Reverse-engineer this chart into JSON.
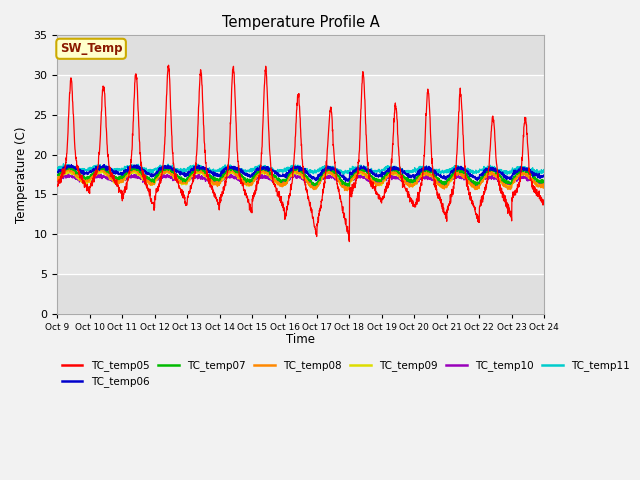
{
  "title": "Temperature Profile A",
  "xlabel": "Time",
  "ylabel": "Temperature (C)",
  "ylim": [
    0,
    35
  ],
  "yticks": [
    0,
    5,
    10,
    15,
    20,
    25,
    30,
    35
  ],
  "xtick_labels": [
    "Oct 9",
    "Oct 10",
    "Oct 11",
    "Oct 12",
    "Oct 13",
    "Oct 14",
    "Oct 15",
    "Oct 16",
    "Oct 17",
    "Oct 18",
    "Oct 19",
    "Oct 20",
    "Oct 21",
    "Oct 22",
    "Oct 23",
    "Oct 24"
  ],
  "sw_temp_label": "SW_Temp",
  "bg_color": "#f2f2f2",
  "plot_bg_color": "#e8e8e8",
  "grid_color": "#d0d0d0",
  "series_colors": {
    "TC_temp05": "#ff0000",
    "TC_temp06": "#0000cc",
    "TC_temp07": "#00bb00",
    "TC_temp08": "#ff8800",
    "TC_temp09": "#dddd00",
    "TC_temp10": "#9900bb",
    "TC_temp11": "#00cccc"
  },
  "legend_order": [
    "TC_temp05",
    "TC_temp06",
    "TC_temp07",
    "TC_temp08",
    "TC_temp09",
    "TC_temp10",
    "TC_temp11"
  ],
  "n_days": 15,
  "pts_per_day": 144
}
